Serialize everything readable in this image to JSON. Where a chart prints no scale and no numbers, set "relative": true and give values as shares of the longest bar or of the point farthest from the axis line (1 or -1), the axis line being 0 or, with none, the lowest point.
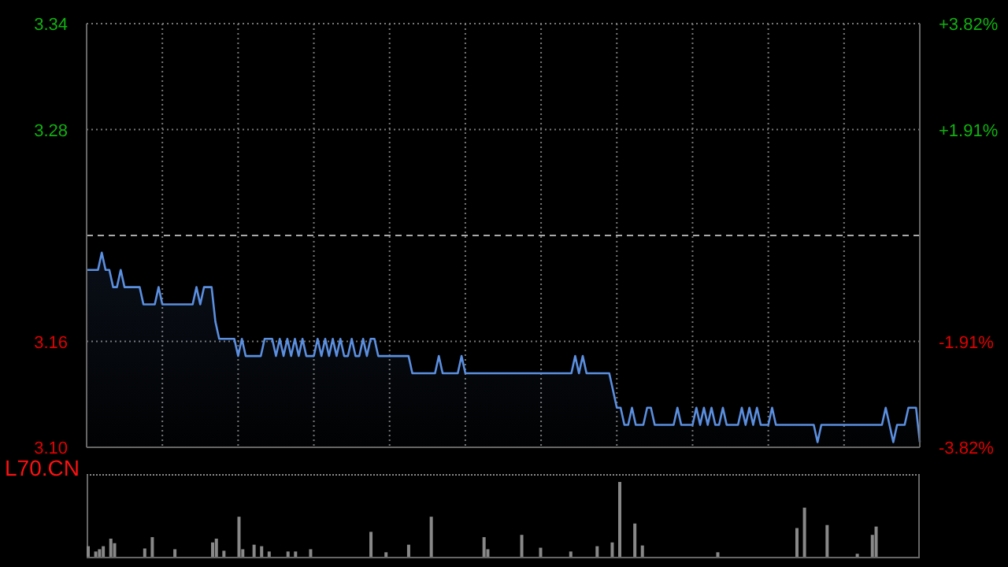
{
  "chart_data": [
    {
      "type": "area",
      "title": "L70.CN",
      "categories": [
        null,
        null,
        null,
        null,
        null,
        null,
        null,
        null,
        null,
        null,
        null,
        null,
        null,
        null,
        null,
        null,
        null,
        null,
        null,
        null,
        null,
        null,
        null,
        null,
        null,
        null,
        null,
        null,
        null,
        null,
        null,
        null,
        null,
        null,
        null,
        null,
        null,
        null,
        null,
        null,
        null,
        null,
        null,
        null,
        null,
        null,
        null,
        null,
        null,
        null,
        null,
        null,
        null,
        null,
        null,
        null,
        null,
        null,
        null,
        null,
        null,
        null,
        null,
        null,
        null,
        null,
        null,
        null,
        null,
        null,
        null,
        null,
        null,
        null,
        null,
        null,
        null,
        null,
        null,
        null,
        null,
        null,
        null,
        null,
        null,
        null,
        null,
        null,
        null,
        null,
        null,
        null,
        null,
        null,
        null,
        null,
        null,
        null,
        null,
        null,
        null,
        null,
        null,
        null,
        null,
        null,
        null,
        null,
        null,
        null,
        null,
        null,
        null,
        null,
        null,
        null,
        null,
        null,
        null,
        null,
        null,
        null,
        null,
        null,
        null,
        null,
        null,
        null,
        null,
        null,
        null,
        null,
        null,
        null,
        null,
        null,
        null,
        null,
        null,
        null,
        null,
        null,
        null,
        null,
        null,
        null,
        null,
        null,
        null,
        null,
        null,
        null,
        null,
        null,
        null,
        null,
        null,
        null,
        null,
        null,
        null,
        null,
        null,
        null,
        null,
        null,
        null,
        null,
        null,
        null,
        null,
        null,
        null,
        null,
        null,
        null,
        null,
        null,
        null,
        null,
        null,
        null,
        null,
        null,
        null,
        null,
        null,
        null,
        null,
        null,
        null,
        null,
        null,
        null,
        null,
        null,
        null,
        null,
        null,
        null,
        null,
        null,
        null,
        null,
        null,
        null,
        null,
        null,
        null,
        null,
        null,
        null,
        null,
        null,
        null,
        null,
        null,
        null,
        null,
        null,
        null
      ],
      "ylim": [
        3.097,
        3.343
      ],
      "yticks": [
        {
          "value": 3.097,
          "label": "3.10"
        },
        {
          "value": 3.1585,
          "label": "3.16"
        },
        {
          "value": 3.2815,
          "label": "3.28"
        },
        {
          "value": 3.343,
          "label": "3.34"
        }
      ],
      "y2lim": [
        -3.82,
        3.82
      ],
      "y2ticks": [
        {
          "value": -3.82,
          "label": "-3.82%"
        },
        {
          "value": -1.91,
          "label": "-1.91%"
        },
        {
          "value": 1.91,
          "label": "+1.91%"
        },
        {
          "value": 3.82,
          "label": "+3.82%"
        }
      ],
      "ref_lines": [
        {
          "axis": "y2",
          "value": 0,
          "line_style": "dashed",
          "color": "#aaaaaa"
        }
      ],
      "grid": true,
      "legend": false,
      "marker": "none",
      "series": [
        {
          "color": "#5b8fe0",
          "values": [
            3.2,
            3.2,
            3.2,
            3.2,
            3.21,
            3.2,
            3.2,
            3.19,
            3.19,
            3.2,
            3.19,
            3.19,
            3.19,
            3.19,
            3.19,
            3.18,
            3.18,
            3.18,
            3.18,
            3.19,
            3.18,
            3.18,
            3.18,
            3.18,
            3.18,
            3.18,
            3.18,
            3.18,
            3.18,
            3.19,
            3.18,
            3.19,
            3.19,
            3.19,
            3.17,
            3.16,
            3.16,
            3.16,
            3.16,
            3.16,
            3.15,
            3.16,
            3.15,
            3.15,
            3.15,
            3.15,
            3.15,
            3.16,
            3.16,
            3.16,
            3.15,
            3.16,
            3.15,
            3.16,
            3.15,
            3.16,
            3.15,
            3.16,
            3.15,
            3.15,
            3.15,
            3.16,
            3.15,
            3.16,
            3.15,
            3.16,
            3.15,
            3.16,
            3.15,
            3.15,
            3.16,
            3.15,
            3.15,
            3.16,
            3.15,
            3.16,
            3.16,
            3.15,
            3.15,
            3.15,
            3.15,
            3.15,
            3.15,
            3.15,
            3.15,
            3.15,
            3.14,
            3.14,
            3.14,
            3.14,
            3.14,
            3.14,
            3.14,
            3.15,
            3.14,
            3.14,
            3.14,
            3.14,
            3.14,
            3.15,
            3.14,
            3.14,
            3.14,
            3.14,
            3.14,
            3.14,
            3.14,
            3.14,
            3.14,
            3.14,
            3.14,
            3.14,
            3.14,
            3.14,
            3.14,
            3.14,
            3.14,
            3.14,
            3.14,
            3.14,
            3.14,
            3.14,
            3.14,
            3.14,
            3.14,
            3.14,
            3.14,
            3.14,
            3.14,
            3.15,
            3.14,
            3.15,
            3.14,
            3.14,
            3.14,
            3.14,
            3.14,
            3.14,
            3.14,
            3.13,
            3.12,
            3.12,
            3.11,
            3.11,
            3.12,
            3.11,
            3.11,
            3.11,
            3.12,
            3.12,
            3.11,
            3.11,
            3.11,
            3.11,
            3.11,
            3.11,
            3.12,
            3.11,
            3.11,
            3.11,
            3.11,
            3.12,
            3.11,
            3.12,
            3.11,
            3.12,
            3.11,
            3.11,
            3.12,
            3.11,
            3.11,
            3.11,
            3.11,
            3.12,
            3.11,
            3.12,
            3.11,
            3.12,
            3.11,
            3.11,
            3.11,
            3.12,
            3.11,
            3.11,
            3.11,
            3.11,
            3.11,
            3.11,
            3.11,
            3.11,
            3.11,
            3.11,
            3.11,
            3.1,
            3.11,
            3.11,
            3.11,
            3.11,
            3.11,
            3.11,
            3.11,
            3.11,
            3.11,
            3.11,
            3.11,
            3.11,
            3.11,
            3.11,
            3.11,
            3.11,
            3.11,
            3.12,
            3.11,
            3.1,
            3.11,
            3.11,
            3.11,
            3.12,
            3.12,
            3.12,
            3.1
          ]
        }
      ]
    },
    {
      "type": "bar",
      "relative": true,
      "legend": false,
      "categories": [
        null,
        null,
        null,
        null,
        null,
        null,
        null,
        null,
        null,
        null,
        null,
        null,
        null,
        null,
        null,
        null,
        null,
        null,
        null,
        null,
        null,
        null,
        null,
        null,
        null,
        null,
        null,
        null,
        null,
        null,
        null,
        null,
        null,
        null,
        null,
        null,
        null,
        null,
        null,
        null,
        null,
        null,
        null,
        null,
        null,
        null,
        null,
        null,
        null,
        null,
        null,
        null,
        null,
        null,
        null,
        null,
        null,
        null,
        null,
        null,
        null,
        null,
        null,
        null,
        null,
        null,
        null,
        null,
        null,
        null,
        null,
        null,
        null,
        null,
        null,
        null,
        null,
        null,
        null,
        null,
        null,
        null,
        null,
        null,
        null,
        null,
        null,
        null,
        null,
        null,
        null,
        null,
        null,
        null,
        null,
        null,
        null,
        null,
        null,
        null,
        null,
        null,
        null,
        null,
        null,
        null,
        null,
        null,
        null,
        null,
        null,
        null,
        null,
        null,
        null,
        null,
        null,
        null,
        null,
        null,
        null,
        null,
        null,
        null,
        null,
        null,
        null,
        null,
        null,
        null,
        null,
        null,
        null,
        null,
        null,
        null,
        null,
        null,
        null,
        null,
        null,
        null,
        null,
        null,
        null,
        null,
        null,
        null,
        null,
        null,
        null,
        null,
        null,
        null,
        null,
        null,
        null,
        null,
        null,
        null,
        null,
        null,
        null,
        null,
        null,
        null,
        null,
        null,
        null,
        null,
        null,
        null,
        null,
        null,
        null,
        null,
        null,
        null,
        null,
        null,
        null,
        null,
        null,
        null,
        null,
        null,
        null,
        null,
        null,
        null,
        null,
        null,
        null,
        null,
        null,
        null,
        null,
        null,
        null,
        null,
        null,
        null,
        null,
        null,
        null,
        null,
        null,
        null,
        null,
        null,
        null,
        null,
        null,
        null,
        null,
        null,
        null,
        null,
        null,
        null,
        null
      ],
      "series": [
        {
          "color": "#888888",
          "values": [
            0.15,
            0.01,
            0.08,
            0.11,
            0.15,
            0.01,
            0.25,
            0.19,
            0.01,
            0.01,
            0.01,
            0.01,
            0.01,
            0.01,
            0.01,
            0.12,
            0.01,
            0.27,
            0.01,
            0.01,
            0.01,
            0.01,
            0.01,
            0.11,
            0.01,
            0.01,
            0.01,
            0.01,
            0.01,
            0.01,
            0.01,
            0.01,
            0.01,
            0.2,
            0.25,
            0.01,
            0.09,
            0.01,
            0.01,
            0.01,
            0.54,
            0.11,
            0.01,
            0.01,
            0.17,
            0.01,
            0.15,
            0.01,
            0.08,
            0.01,
            0.01,
            0.01,
            0.01,
            0.08,
            0.01,
            0.08,
            0.01,
            0.01,
            0.01,
            0.11,
            0.01,
            0.01,
            0.01,
            0.01,
            0.01,
            0.01,
            0.01,
            0.01,
            0.01,
            0.01,
            0.01,
            0.01,
            0.01,
            0.01,
            0.01,
            0.34,
            0.01,
            0.01,
            0.01,
            0.07,
            0.01,
            0.01,
            0.01,
            0.01,
            0.01,
            0.17,
            0.01,
            0.01,
            0.01,
            0.01,
            0.01,
            0.54,
            0.01,
            0.01,
            0.01,
            0.01,
            0.01,
            0.01,
            0.01,
            0.01,
            0.01,
            0.01,
            0.01,
            0.01,
            0.01,
            0.27,
            0.11,
            0.01,
            0.01,
            0.01,
            0.01,
            0.01,
            0.01,
            0.01,
            0.01,
            0.3,
            0.01,
            0.01,
            0.01,
            0.01,
            0.13,
            0.01,
            0.01,
            0.01,
            0.01,
            0.01,
            0.01,
            0.01,
            0.08,
            0.01,
            0.01,
            0.01,
            0.01,
            0.01,
            0.01,
            0.15,
            0.01,
            0.01,
            0.01,
            0.2,
            0.01,
            1,
            0.01,
            0.01,
            0.01,
            0.45,
            0.01,
            0.16,
            0.01,
            0.01,
            0.01,
            0.01,
            0.01,
            0.01,
            0.01,
            0.01,
            0.01,
            0.01,
            0.01,
            0.01,
            0.01,
            0.01,
            0.01,
            0.01,
            0.01,
            0.01,
            0.01,
            0.07,
            0.01,
            0.01,
            0.01,
            0.01,
            0.01,
            0.01,
            0.01,
            0.01,
            0.01,
            0.01,
            0.01,
            0.01,
            0.01,
            0.01,
            0.01,
            0.01,
            0.01,
            0.01,
            0.01,
            0.01,
            0.39,
            0.01,
            0.66,
            0.01,
            0.01,
            0.01,
            0.01,
            0.01,
            0.43,
            0.01,
            0.01,
            0.01,
            0.01,
            0.01,
            0.01,
            0.01,
            0.05,
            0.01,
            0.01,
            0.01,
            0.3,
            0.41,
            0.01,
            0.01,
            0.01,
            0.01,
            0.01,
            0.01,
            0.01,
            0.01,
            0.01,
            0.01,
            0.01
          ]
        }
      ]
    }
  ]
}
